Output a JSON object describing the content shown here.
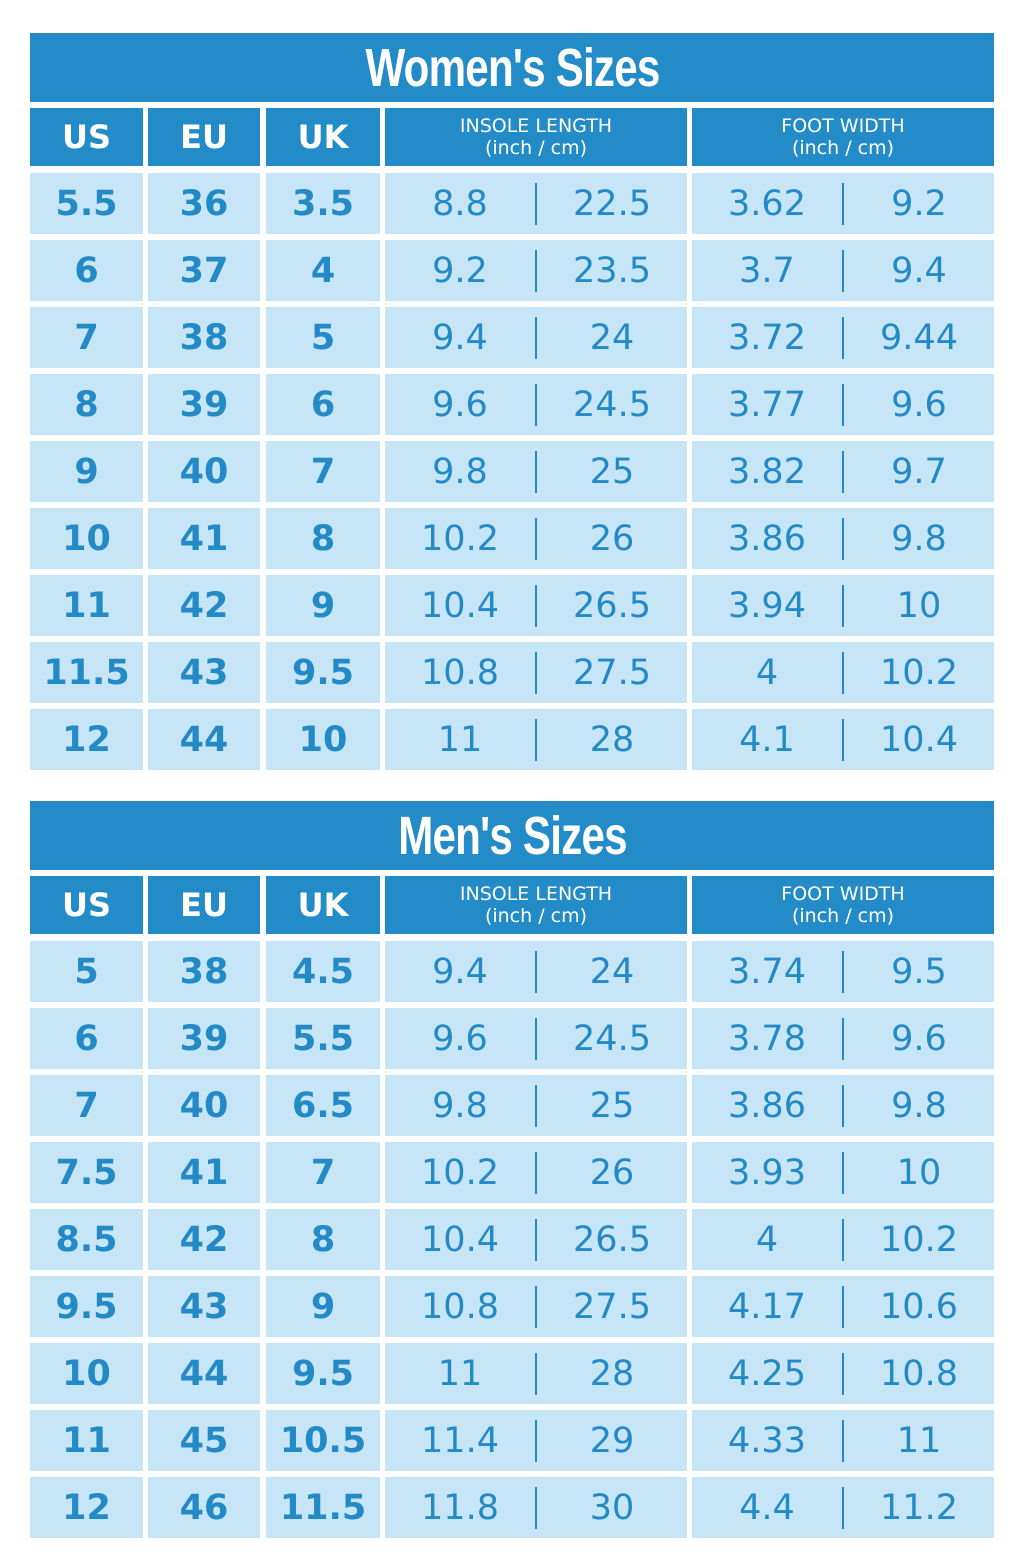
{
  "headers": {
    "us": "US",
    "eu": "EU",
    "uk": "UK",
    "insole": "INSOLE LENGTH",
    "width": "FOOT WIDTH",
    "unit": "(inch / cm)"
  },
  "colors": {
    "header_bg": "#228bc8",
    "cell_bg": "#c6e5f7",
    "text": "#238ac6"
  },
  "tables": [
    {
      "title": "Women's Sizes",
      "rows": [
        [
          "5.5",
          "36",
          "3.5",
          "8.8",
          "22.5",
          "3.62",
          "9.2"
        ],
        [
          "6",
          "37",
          "4",
          "9.2",
          "23.5",
          "3.7",
          "9.4"
        ],
        [
          "7",
          "38",
          "5",
          "9.4",
          "24",
          "3.72",
          "9.44"
        ],
        [
          "8",
          "39",
          "6",
          "9.6",
          "24.5",
          "3.77",
          "9.6"
        ],
        [
          "9",
          "40",
          "7",
          "9.8",
          "25",
          "3.82",
          "9.7"
        ],
        [
          "10",
          "41",
          "8",
          "10.2",
          "26",
          "3.86",
          "9.8"
        ],
        [
          "11",
          "42",
          "9",
          "10.4",
          "26.5",
          "3.94",
          "10"
        ],
        [
          "11.5",
          "43",
          "9.5",
          "10.8",
          "27.5",
          "4",
          "10.2"
        ],
        [
          "12",
          "44",
          "10",
          "11",
          "28",
          "4.1",
          "10.4"
        ]
      ]
    },
    {
      "title": "Men's Sizes",
      "rows": [
        [
          "5",
          "38",
          "4.5",
          "9.4",
          "24",
          "3.74",
          "9.5"
        ],
        [
          "6",
          "39",
          "5.5",
          "9.6",
          "24.5",
          "3.78",
          "9.6"
        ],
        [
          "7",
          "40",
          "6.5",
          "9.8",
          "25",
          "3.86",
          "9.8"
        ],
        [
          "7.5",
          "41",
          "7",
          "10.2",
          "26",
          "3.93",
          "10"
        ],
        [
          "8.5",
          "42",
          "8",
          "10.4",
          "26.5",
          "4",
          "10.2"
        ],
        [
          "9.5",
          "43",
          "9",
          "10.8",
          "27.5",
          "4.17",
          "10.6"
        ],
        [
          "10",
          "44",
          "9.5",
          "11",
          "28",
          "4.25",
          "10.8"
        ],
        [
          "11",
          "45",
          "10.5",
          "11.4",
          "29",
          "4.33",
          "11"
        ],
        [
          "12",
          "46",
          "11.5",
          "11.8",
          "30",
          "4.4",
          "11.2"
        ]
      ]
    }
  ]
}
